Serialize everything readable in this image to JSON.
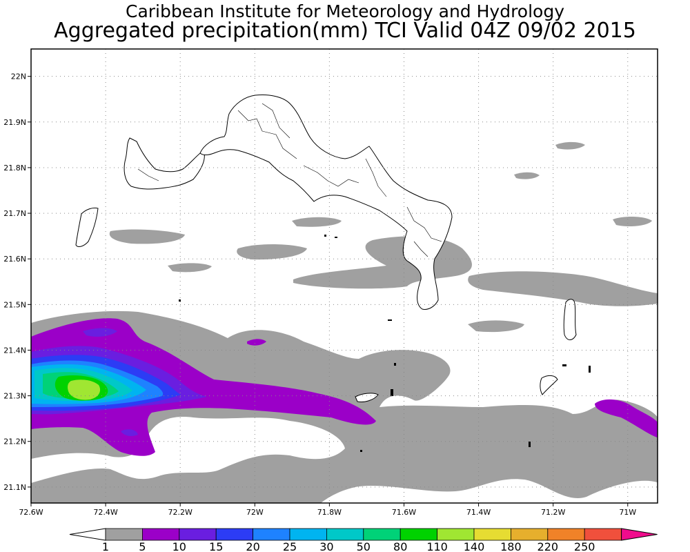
{
  "header": {
    "title_line1": "Caribbean Institute for Meteorology and Hydrology",
    "title_line2": "Aggregated precipitation(mm) TCI Valid 04Z 09/02 2015"
  },
  "map": {
    "region": "Turks and Caicos Islands",
    "lon_ticks": [
      "72.6W",
      "72.4W",
      "72.2W",
      "72W",
      "71.8W",
      "71.6W",
      "71.4W",
      "71.2W",
      "71W"
    ],
    "lat_ticks": [
      "22N",
      "21.9N",
      "21.8N",
      "21.7N",
      "21.6N",
      "21.5N",
      "21.4N",
      "21.3N",
      "21.2N",
      "21.1N"
    ],
    "lon_values": [
      -72.6,
      -72.4,
      -72.2,
      -72.0,
      -71.8,
      -71.6,
      -71.4,
      -71.2,
      -71.0
    ],
    "lat_values": [
      22.0,
      21.9,
      21.8,
      21.7,
      21.6,
      21.5,
      21.4,
      21.3,
      21.2,
      21.1
    ],
    "lon_range": [
      -72.6,
      -70.92
    ],
    "lat_range": [
      21.065,
      22.06
    ],
    "grid": "dotted"
  },
  "colorbar": {
    "labels": [
      "1",
      "5",
      "10",
      "15",
      "20",
      "25",
      "30",
      "50",
      "80",
      "110",
      "140",
      "180",
      "220",
      "250"
    ],
    "colors": [
      "#a0a0a0",
      "#9b00c8",
      "#6a1ee0",
      "#2c3cf5",
      "#1e82ff",
      "#00b4f0",
      "#00c8c8",
      "#00d278",
      "#00d200",
      "#a0e632",
      "#e6dc32",
      "#e6af2d",
      "#f08228",
      "#f0503c"
    ],
    "below_color": "#ffffff",
    "above_color": "#f00c8c"
  }
}
